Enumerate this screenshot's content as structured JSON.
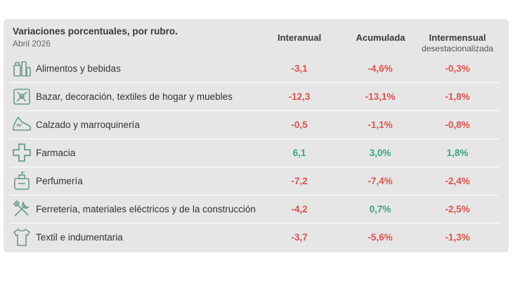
{
  "title": "Variaciones porcentuales, por rubro.",
  "subtitle": "Abril 2026",
  "colors": {
    "negative": "#e0524f",
    "positive": "#3aa67a",
    "icon": "#6b9c8c",
    "card": "#e6e6e6"
  },
  "columns": [
    {
      "label": "Interanual",
      "sub": ""
    },
    {
      "label": "Acumulada",
      "sub": ""
    },
    {
      "label": "Intermensual",
      "sub": "desestacionalizada"
    }
  ],
  "chart_data": {
    "type": "table",
    "title": "Variaciones porcentuales, por rubro.",
    "subtitle": "Abril 2026",
    "columns": [
      "Interanual",
      "Acumulada",
      "Intermensual desestacionalizada"
    ],
    "rows": [
      {
        "rubro": "Alimentos y bebidas",
        "icon": "grocery-icon",
        "values": [
          -3.1,
          -4.6,
          -0.3
        ],
        "display": [
          "-3,1",
          "-4,6%",
          "-0,3%"
        ]
      },
      {
        "rubro": "Bazar, decoración, textiles de hogar y muebles",
        "icon": "bazar-icon",
        "values": [
          -12.3,
          -13.1,
          -1.8
        ],
        "display": [
          "-12,3",
          "-13,1%",
          "-1,8%"
        ]
      },
      {
        "rubro": "Calzado y marroquinería",
        "icon": "shoe-icon",
        "values": [
          -0.5,
          -1.1,
          -0.8
        ],
        "display": [
          "-0,5",
          "-1,1%",
          "-0,8%"
        ]
      },
      {
        "rubro": "Farmacia",
        "icon": "pharmacy-cross-icon",
        "values": [
          6.1,
          3.0,
          1.8
        ],
        "display": [
          "6,1",
          "3,0%",
          "1,8%"
        ]
      },
      {
        "rubro": "Perfumería",
        "icon": "perfume-icon",
        "values": [
          -7.2,
          -7.4,
          -2.4
        ],
        "display": [
          "-7,2",
          "-7,4%",
          "-2,4%"
        ]
      },
      {
        "rubro": "Ferretería, materiales eléctricos y de la construcción",
        "icon": "tools-icon",
        "values": [
          -4.2,
          0.7,
          -2.5
        ],
        "display": [
          "-4,2",
          "0,7%",
          "-2,5%"
        ]
      },
      {
        "rubro": "Textil e indumentaria",
        "icon": "shirt-icon",
        "values": [
          -3.7,
          -5.6,
          -1.3
        ],
        "display": [
          "-3,7",
          "-5,6%",
          "-1,3%"
        ]
      }
    ]
  }
}
